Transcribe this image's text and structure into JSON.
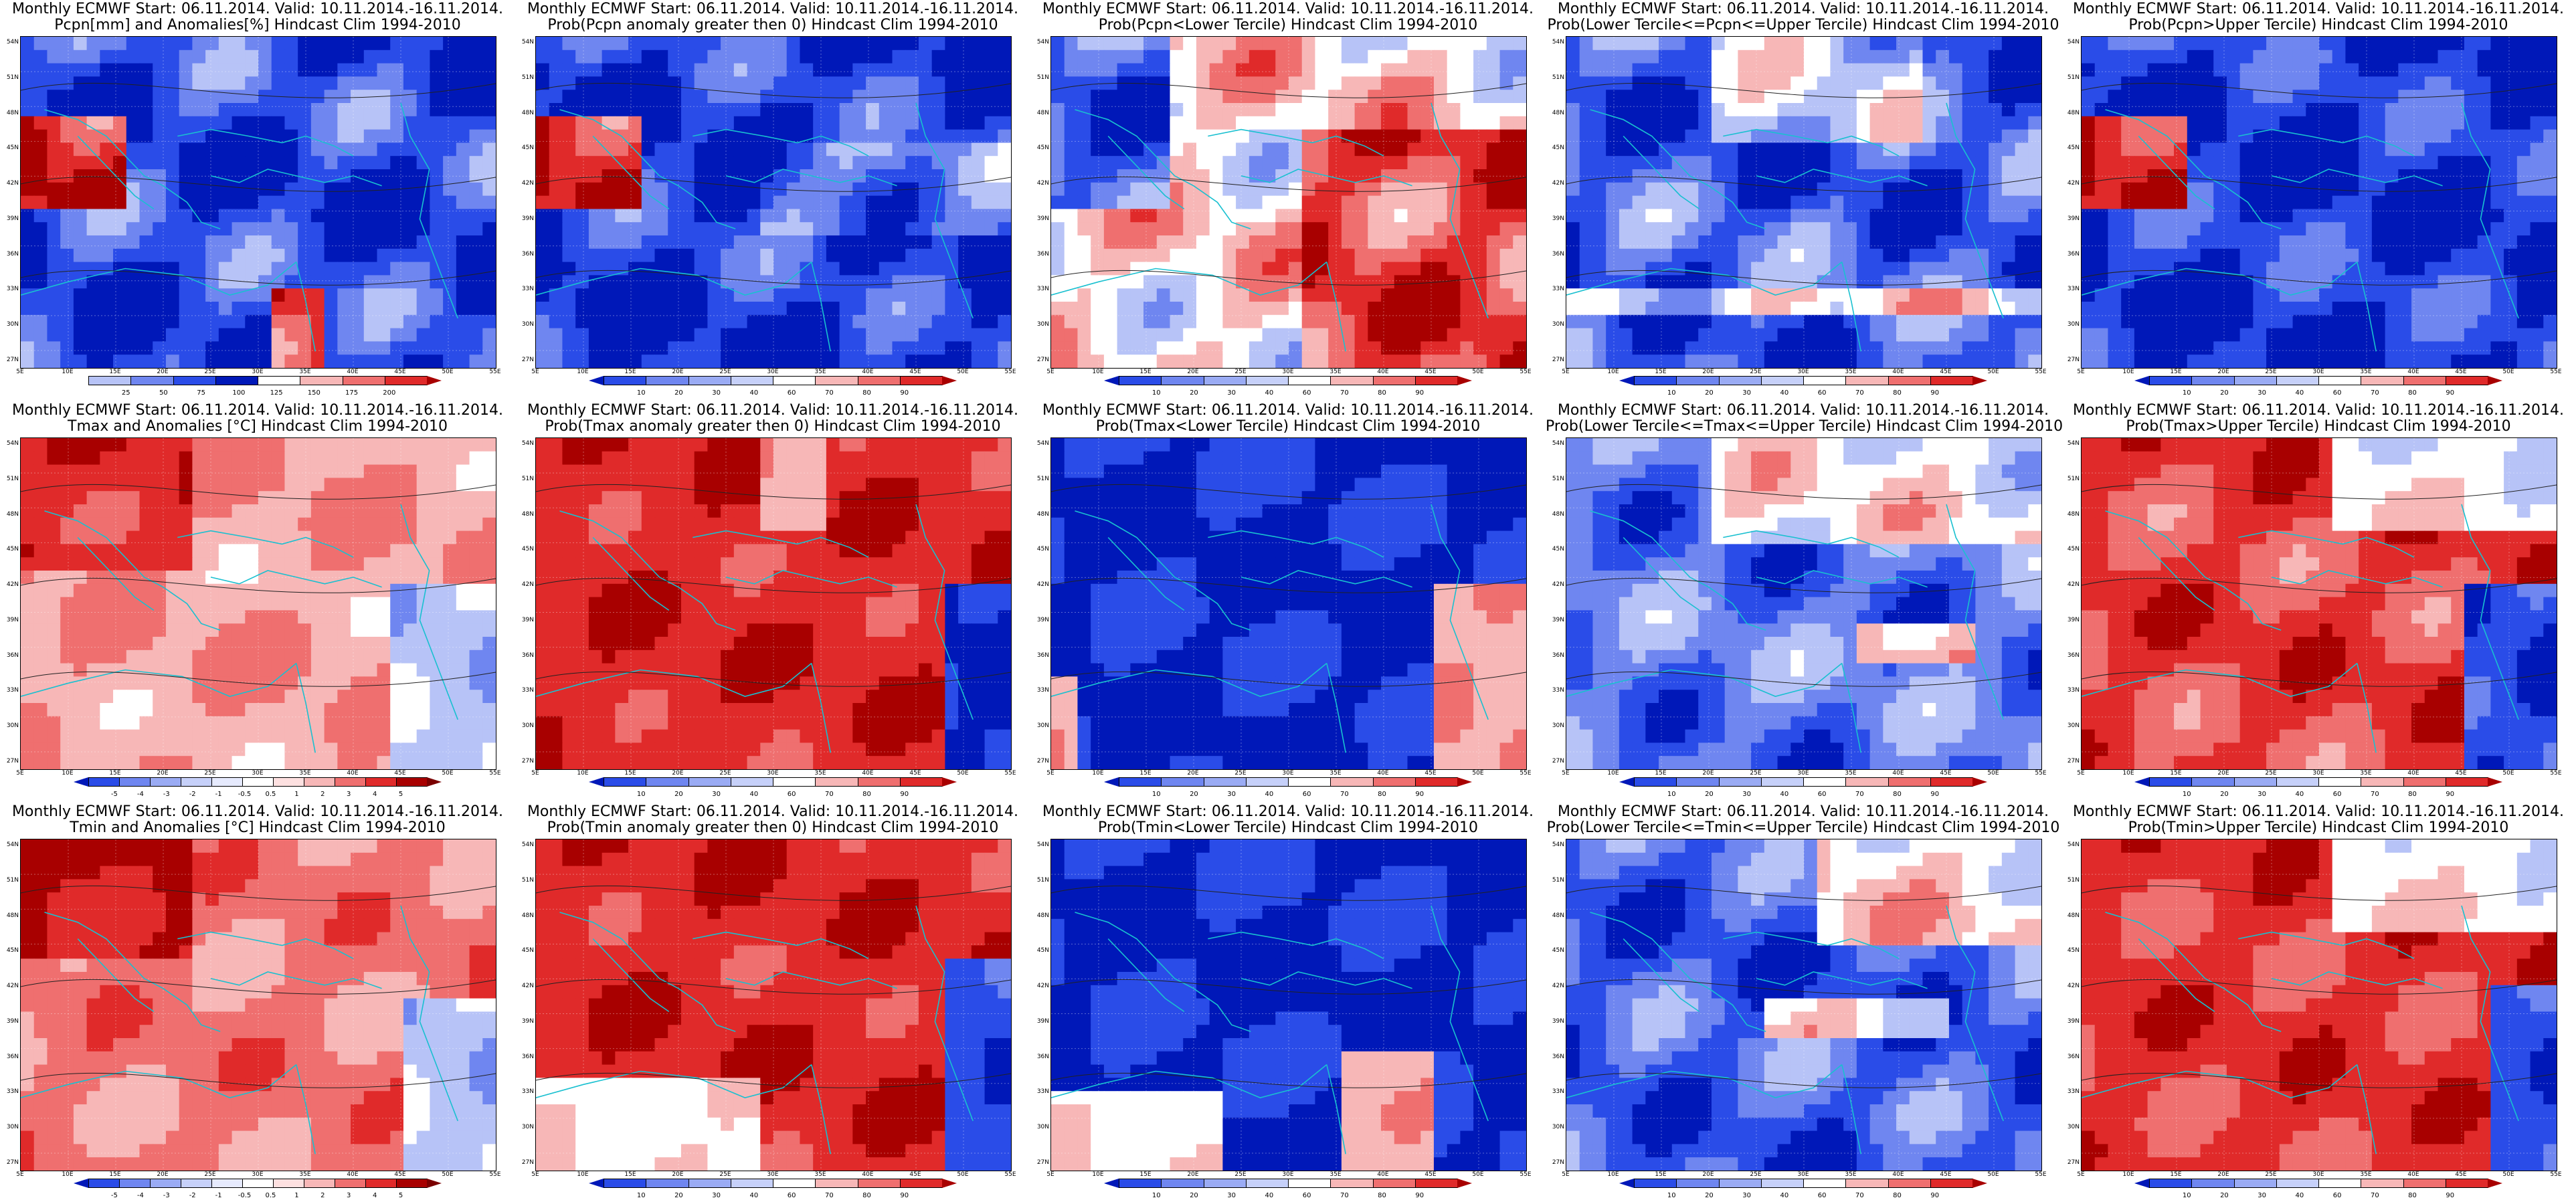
{
  "lat_labels": [
    "54N",
    "51N",
    "48N",
    "45N",
    "42N",
    "39N",
    "36N",
    "33N",
    "30N",
    "27N"
  ],
  "lon_labels": [
    "5E",
    "10E",
    "15E",
    "20E",
    "25E",
    "30E",
    "35E",
    "40E",
    "45E",
    "50E",
    "55E"
  ],
  "colors": {
    "deep_blue": "#0018b8",
    "blue": "#2a4ce8",
    "mid_blue": "#6f86f0",
    "light_blue": "#b7c3f7",
    "white": "#ffffff",
    "light_red": "#f7b7b7",
    "mid_red": "#ef6f6f",
    "red": "#e02a2a",
    "deep_red": "#a80000",
    "coast": "#19c0d0",
    "contour": "#222222"
  },
  "colorbars": {
    "pcpn_anom": {
      "labels": [
        "25",
        "50",
        "75",
        "100",
        "125",
        "150",
        "175",
        "200"
      ]
    },
    "temp_anom": {
      "labels": [
        "-5",
        "-4",
        "-3",
        "-2",
        "-1",
        "-0.5",
        "0.5",
        "1",
        "2",
        "3",
        "4",
        "5"
      ]
    },
    "prob": {
      "labels": [
        "10",
        "20",
        "30",
        "40",
        "60",
        "70",
        "80",
        "90"
      ]
    }
  },
  "panels": [
    {
      "id": "p11",
      "title1": "Monthly ECMWF Start: 06.11.2014. Valid: 10.11.2014.-16.11.2014.",
      "title2": "Pcpn[mm] and Anomalies[%] Hindcast Clim 1994-2010",
      "cbar": "pcpn_anom",
      "field": "pcpn_anom"
    },
    {
      "id": "p12",
      "title1": "Monthly ECMWF Start: 06.11.2014. Valid: 10.11.2014.-16.11.2014.",
      "title2": "Prob(Pcpn anomaly greater then 0) Hindcast Clim 1994-2010",
      "cbar": "prob",
      "field": "pcpn_pos"
    },
    {
      "id": "p13",
      "title1": "Monthly ECMWF Start: 06.11.2014. Valid: 10.11.2014.-16.11.2014.",
      "title2": "Prob(Pcpn<Lower Tercile) Hindcast Clim 1994-2010",
      "cbar": "prob",
      "field": "pcpn_low"
    },
    {
      "id": "p14",
      "title1": "Monthly ECMWF Start: 06.11.2014. Valid: 10.11.2014.-16.11.2014.",
      "title2": "Prob(Lower Tercile<=Pcpn<=Upper Tercile) Hindcast Clim 1994-2010",
      "cbar": "prob",
      "field": "pcpn_mid"
    },
    {
      "id": "p15",
      "title1": "Monthly ECMWF Start: 06.11.2014. Valid: 10.11.2014.-16.11.2014.",
      "title2": "Prob(Pcpn>Upper Tercile) Hindcast Clim 1994-2010",
      "cbar": "prob",
      "field": "pcpn_up"
    },
    {
      "id": "p21",
      "title1": "Monthly ECMWF Start: 06.11.2014. Valid: 10.11.2014.-16.11.2014.",
      "title2": "Tmax and Anomalies [°C] Hindcast Clim 1994-2010",
      "cbar": "temp_anom",
      "field": "tmax_anom"
    },
    {
      "id": "p22",
      "title1": "Monthly ECMWF Start: 06.11.2014. Valid: 10.11.2014.-16.11.2014.",
      "title2": "Prob(Tmax anomaly greater then 0) Hindcast Clim 1994-2010",
      "cbar": "prob",
      "field": "tmax_pos"
    },
    {
      "id": "p23",
      "title1": "Monthly ECMWF Start: 06.11.2014. Valid: 10.11.2014.-16.11.2014.",
      "title2": "Prob(Tmax<Lower Tercile) Hindcast Clim 1994-2010",
      "cbar": "prob",
      "field": "tmax_low"
    },
    {
      "id": "p24",
      "title1": "Monthly ECMWF Start: 06.11.2014. Valid: 10.11.2014.-16.11.2014.",
      "title2": "Prob(Lower Tercile<=Tmax<=Upper Tercile) Hindcast Clim 1994-2010",
      "cbar": "prob",
      "field": "tmax_mid"
    },
    {
      "id": "p25",
      "title1": "Monthly ECMWF Start: 06.11.2014. Valid: 10.11.2014.-16.11.2014.",
      "title2": "Prob(Tmax>Upper Tercile) Hindcast Clim 1994-2010",
      "cbar": "prob",
      "field": "tmax_up"
    },
    {
      "id": "p31",
      "title1": "Monthly ECMWF Start: 06.11.2014. Valid: 10.11.2014.-16.11.2014.",
      "title2": "Tmin and Anomalies [°C] Hindcast Clim 1994-2010",
      "cbar": "temp_anom",
      "field": "tmin_anom"
    },
    {
      "id": "p32",
      "title1": "Monthly ECMWF Start: 06.11.2014. Valid: 10.11.2014.-16.11.2014.",
      "title2": "Prob(Tmin anomaly greater then 0) Hindcast Clim 1994-2010",
      "cbar": "prob",
      "field": "tmin_pos"
    },
    {
      "id": "p33",
      "title1": "Monthly ECMWF Start: 06.11.2014. Valid: 10.11.2014.-16.11.2014.",
      "title2": "Prob(Tmin<Lower Tercile) Hindcast Clim 1994-2010",
      "cbar": "prob",
      "field": "tmin_low"
    },
    {
      "id": "p34",
      "title1": "Monthly ECMWF Start: 06.11.2014. Valid: 10.11.2014.-16.11.2014.",
      "title2": "Prob(Lower Tercile<=Tmin<=Upper Tercile) Hindcast Clim 1994-2010",
      "cbar": "prob",
      "field": "tmin_mid"
    },
    {
      "id": "p35",
      "title1": "Monthly ECMWF Start: 06.11.2014. Valid: 10.11.2014.-16.11.2014.",
      "title2": "Prob(Tmin>Upper Tercile) Hindcast Clim 1994-2010",
      "cbar": "prob",
      "field": "tmin_up"
    }
  ]
}
